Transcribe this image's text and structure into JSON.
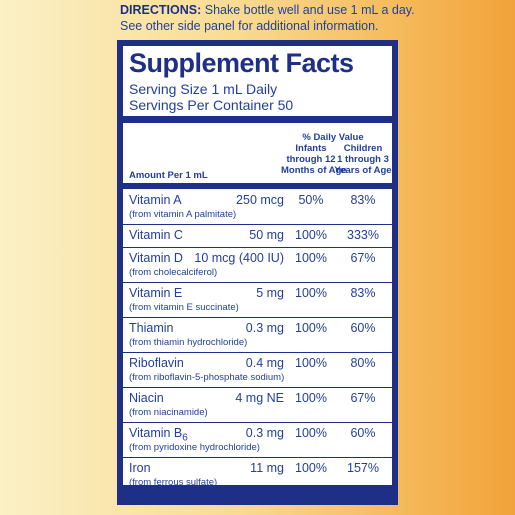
{
  "directions": {
    "label": "DIRECTIONS:",
    "text": "Shake bottle well and use 1 mL a day.",
    "line2": "See other side panel for additional information."
  },
  "panel": {
    "title": "Supplement Facts",
    "serving_size": "Serving Size 1 mL Daily",
    "servings_per_container": "Servings Per Container 50",
    "header": {
      "daily_value": "% Daily Value",
      "infants": [
        "Infants",
        "through 12",
        "Months of Age"
      ],
      "children": [
        "Children",
        "1 through 3",
        "Years of Age"
      ],
      "amount": "Amount Per 1 mL"
    },
    "rows": [
      {
        "name": "Vitamin A",
        "source": "(from vitamin A palmitate)",
        "amount": "250 mcg",
        "infants": "50%",
        "children": "83%"
      },
      {
        "name": "Vitamin C",
        "amount": "50 mg",
        "infants": "100%",
        "children": "333%"
      },
      {
        "name": "Vitamin D",
        "source": "(from cholecalciferol)",
        "amount": "10 mcg (400 IU)",
        "infants": "100%",
        "children": "67%"
      },
      {
        "name": "Vitamin E",
        "source": "(from vitamin E succinate)",
        "amount": "5 mg",
        "infants": "100%",
        "children": "83%"
      },
      {
        "name": "Thiamin",
        "source": "(from thiamin hydrochloride)",
        "amount": "0.3 mg",
        "infants": "100%",
        "children": "60%"
      },
      {
        "name": "Riboflavin",
        "source": "(from riboflavin-5-phosphate sodium)",
        "amount": "0.4 mg",
        "infants": "100%",
        "children": "80%"
      },
      {
        "name": "Niacin",
        "source": "(from niacinamide)",
        "amount": "4 mg NE",
        "infants": "100%",
        "children": "67%"
      },
      {
        "name": "Vitamin B",
        "name_sub": "6",
        "source": "(from  pyridoxine hydrochloride)",
        "amount": "0.3 mg",
        "infants": "100%",
        "children": "60%"
      },
      {
        "name": "Iron",
        "source": "(from ferrous sulfate)",
        "amount": "11 mg",
        "infants": "100%",
        "children": "157%"
      }
    ]
  }
}
